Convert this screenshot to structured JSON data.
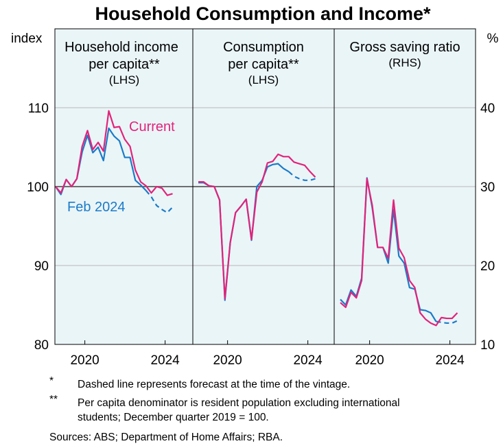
{
  "colors": {
    "current": "#e2237a",
    "feb2024": "#1b7bc8",
    "background": "#eaf5f8"
  },
  "chart_data": {
    "type": "line",
    "title": "Household Consumption and Income*",
    "left_axis": {
      "label": "index",
      "ticks": [
        "80",
        "90",
        "100",
        "110"
      ],
      "ylim": [
        80,
        120
      ]
    },
    "right_axis": {
      "label": "%",
      "ticks": [
        "10",
        "20",
        "30",
        "40"
      ],
      "ylim": [
        10,
        50
      ]
    },
    "x_tick_labels": [
      "2020",
      "2024"
    ],
    "x": [
      "2019Q1",
      "2019Q2",
      "2019Q3",
      "2019Q4",
      "2020Q1",
      "2020Q2",
      "2020Q3",
      "2020Q4",
      "2021Q1",
      "2021Q2",
      "2021Q3",
      "2021Q4",
      "2022Q1",
      "2022Q2",
      "2022Q3",
      "2022Q4",
      "2023Q1",
      "2023Q2",
      "2023Q3",
      "2023Q4",
      "2024Q1",
      "2024Q2",
      "2024Q3"
    ],
    "panels": [
      {
        "title_lines": [
          "Household income",
          "per capita**",
          "(LHS)"
        ],
        "axis": "left",
        "labels": {
          "current": "Current",
          "feb2024": "Feb 2024"
        },
        "series": [
          {
            "name": "Current",
            "values": [
              100.0,
              99.2,
              100.9,
              100.0,
              101.0,
              105.1,
              107.1,
              104.7,
              105.6,
              104.5,
              109.6,
              107.5,
              107.6,
              106.0,
              105.1,
              102.1,
              100.6,
              100.1,
              99.2,
              100.0,
              99.8,
              98.9,
              99.1
            ]
          },
          {
            "name": "Feb 2024",
            "forecast_from_index": 17,
            "values": [
              100.0,
              99.0,
              100.9,
              100.0,
              101.0,
              104.4,
              106.5,
              104.3,
              105.0,
              103.3,
              107.4,
              106.4,
              105.8,
              103.7,
              103.7,
              100.8,
              100.2,
              99.5,
              98.7,
              97.6,
              97.1,
              96.7,
              97.4
            ]
          }
        ]
      },
      {
        "title_lines": [
          "Consumption",
          "per capita**",
          "(LHS)"
        ],
        "axis": "left",
        "series": [
          {
            "name": "Current",
            "values": [
              100.6,
              100.6,
              100.1,
              100.0,
              98.3,
              85.8,
              92.9,
              96.7,
              97.5,
              98.4,
              93.3,
              99.3,
              100.6,
              103.0,
              103.2,
              104.1,
              103.8,
              103.8,
              103.1,
              102.9,
              102.7,
              101.9,
              101.2
            ]
          },
          {
            "name": "Feb 2024",
            "forecast_from_index": 17,
            "values": [
              100.5,
              100.5,
              100.1,
              100.0,
              98.3,
              85.6,
              92.9,
              96.7,
              97.5,
              98.4,
              93.2,
              100.0,
              100.8,
              102.5,
              102.8,
              102.9,
              102.3,
              101.9,
              101.3,
              101.0,
              100.8,
              100.8,
              101.0
            ]
          }
        ]
      },
      {
        "title_lines": [
          "Gross saving ratio",
          "(RHS)"
        ],
        "axis": "right",
        "series": [
          {
            "name": "Current",
            "values": [
              15.3,
              14.7,
              16.6,
              15.9,
              18.1,
              31.0,
              27.6,
              22.3,
              22.3,
              20.9,
              28.3,
              22.2,
              21.0,
              18.1,
              17.2,
              14.0,
              13.2,
              12.7,
              12.4,
              13.4,
              13.3,
              13.3,
              14.0
            ]
          },
          {
            "name": "Feb 2024",
            "forecast_from_index": 18,
            "values": [
              15.7,
              15.0,
              16.9,
              16.1,
              18.4,
              31.1,
              27.3,
              22.3,
              22.3,
              20.3,
              27.1,
              21.2,
              20.3,
              17.2,
              17.0,
              14.4,
              14.3,
              14.0,
              12.9,
              12.8,
              12.7,
              12.7,
              13.0
            ]
          }
        ]
      }
    ],
    "footnotes": [
      {
        "mark": "*",
        "lines": [
          "Dashed line represents forecast at the time of the vintage."
        ]
      },
      {
        "mark": "**",
        "lines": [
          "Per capita denominator is resident population excluding international",
          "students; December quarter 2019 = 100."
        ]
      }
    ],
    "sources": "Sources: ABS; Department of Home Affairs; RBA."
  }
}
